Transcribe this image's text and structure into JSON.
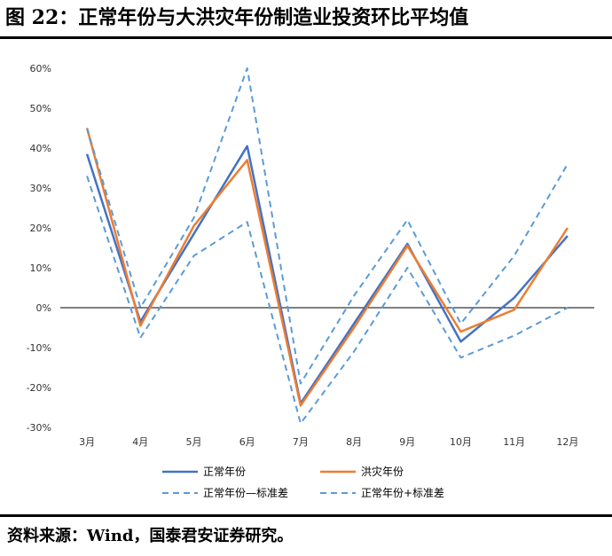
{
  "header": {
    "title": "图 22：正常年份与大洪灾年份制造业投资环比平均值"
  },
  "footer": {
    "source": "资料来源：Wind，国泰君安证券研究。"
  },
  "chart_data": {
    "type": "line",
    "categories": [
      "3月",
      "4月",
      "5月",
      "6月",
      "7月",
      "8月",
      "9月",
      "10月",
      "11月",
      "12月"
    ],
    "ylim": [
      -30,
      60
    ],
    "yticks": [
      -30,
      -20,
      -10,
      0,
      10,
      20,
      30,
      40,
      50,
      60
    ],
    "ytick_labels": [
      "-30%",
      "-20%",
      "-10%",
      "0%",
      "10%",
      "20%",
      "30%",
      "40%",
      "50%",
      "60%"
    ],
    "grid": false,
    "legend_position": "bottom",
    "series": [
      {
        "name": "正常年份",
        "values": [
          38.5,
          -3.5,
          18.5,
          40.5,
          -24,
          -4,
          16,
          -8.5,
          2.5,
          18
        ],
        "color": "#4472C4",
        "style": "solid"
      },
      {
        "name": "洪灾年份",
        "values": [
          45,
          -4.5,
          20.5,
          37,
          -24.5,
          -5,
          15.5,
          -6,
          -0.5,
          20
        ],
        "color": "#ED7D31",
        "style": "solid"
      },
      {
        "name": "正常年份—标准差",
        "values": [
          33,
          -7.5,
          13,
          21.5,
          -29,
          -11,
          10,
          -12.5,
          -7,
          0
        ],
        "color": "#5B9BD5",
        "style": "dashed"
      },
      {
        "name": "正常年份+标准差",
        "values": [
          45,
          0,
          22.5,
          60,
          -19,
          3,
          22,
          -4,
          13,
          36
        ],
        "color": "#5B9BD5",
        "style": "dashed"
      }
    ]
  }
}
